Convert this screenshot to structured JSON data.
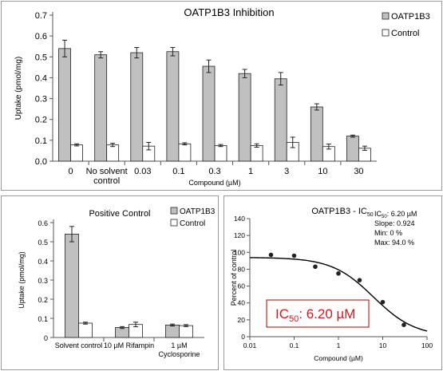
{
  "chart_data": [
    {
      "type": "bar",
      "title": "OATP1B3 Inhibition",
      "xlabel": "Compound (µM)",
      "ylabel": "Uptake (pmol/mg)",
      "ylim": [
        0,
        0.7
      ],
      "yticks": [
        "0.0",
        "0.1",
        "0.2",
        "0.3",
        "0.4",
        "0.5",
        "0.6",
        "0.7"
      ],
      "categories": [
        [
          "0"
        ],
        [
          "No solvent",
          "control"
        ],
        [
          "0.03"
        ],
        [
          "0.1"
        ],
        [
          "0.3"
        ],
        [
          "1"
        ],
        [
          "3"
        ],
        [
          "10"
        ],
        [
          "30"
        ]
      ],
      "series": [
        {
          "name": "OATP1B3",
          "color": "#c0c0c0",
          "values": [
            0.54,
            0.51,
            0.52,
            0.525,
            0.455,
            0.42,
            0.395,
            0.26,
            0.12
          ],
          "errors": [
            0.04,
            0.015,
            0.025,
            0.02,
            0.03,
            0.02,
            0.03,
            0.015,
            0.005
          ]
        },
        {
          "name": "Control",
          "color": "#ffffff",
          "values": [
            0.078,
            0.078,
            0.072,
            0.083,
            0.075,
            0.075,
            0.09,
            0.07,
            0.062
          ],
          "errors": [
            0.005,
            0.008,
            0.018,
            0.005,
            0.005,
            0.008,
            0.025,
            0.012,
            0.01
          ]
        }
      ],
      "legend": "top-right",
      "grid": false
    },
    {
      "type": "bar",
      "title": "Positive Control",
      "xlabel": "",
      "ylabel": "Uptake (pmol/mg)",
      "ylim": [
        0,
        0.6
      ],
      "yticks": [
        "0",
        "0.1",
        "0.2",
        "0.3",
        "0.4",
        "0.5",
        "0.6"
      ],
      "categories": [
        [
          "Solvent control"
        ],
        [
          "10 µM Rifampin"
        ],
        [
          "1 µM",
          "Cyclosporine"
        ]
      ],
      "series": [
        {
          "name": "OATP1B3",
          "color": "#c0c0c0",
          "values": [
            0.54,
            0.052,
            0.065
          ],
          "errors": [
            0.04,
            0.005,
            0.005
          ]
        },
        {
          "name": "Control",
          "color": "#ffffff",
          "values": [
            0.075,
            0.068,
            0.062
          ],
          "errors": [
            0.005,
            0.012,
            0.005
          ]
        }
      ],
      "legend": "top-right",
      "grid": false
    },
    {
      "type": "scatter",
      "title_main": "OATP1B3 - IC",
      "title_sub": "50",
      "xlabel": "Compound (µM)",
      "ylabel": "Percent of control",
      "xscale": "log",
      "xlim": [
        0.01,
        100
      ],
      "ylim": [
        0,
        140
      ],
      "xticks": [
        "0.01",
        "0.1",
        "1",
        "10",
        "100"
      ],
      "yticks": [
        "0",
        "20",
        "40",
        "60",
        "80",
        "100",
        "120",
        "140"
      ],
      "points": [
        {
          "x": 0.03,
          "y": 97
        },
        {
          "x": 0.1,
          "y": 96
        },
        {
          "x": 0.3,
          "y": 83
        },
        {
          "x": 1,
          "y": 75
        },
        {
          "x": 3,
          "y": 67
        },
        {
          "x": 10,
          "y": 41
        },
        {
          "x": 30,
          "y": 14
        }
      ],
      "fit": {
        "ic50": 6.2,
        "slope": 0.924,
        "min": 0,
        "max": 94.0
      },
      "params_text": {
        "ic_prefix": "IC",
        "ic_sub": "50",
        "ic_value": ": 6.20 µM",
        "slope": "Slope: 0.924",
        "min": "Min: 0 %",
        "max": "Max: 94.0 %"
      },
      "callout": {
        "prefix": "IC",
        "sub": "50",
        "value": ": 6.20 µM",
        "color": "#e0141e",
        "border": "#b00000"
      },
      "grid": false
    }
  ]
}
